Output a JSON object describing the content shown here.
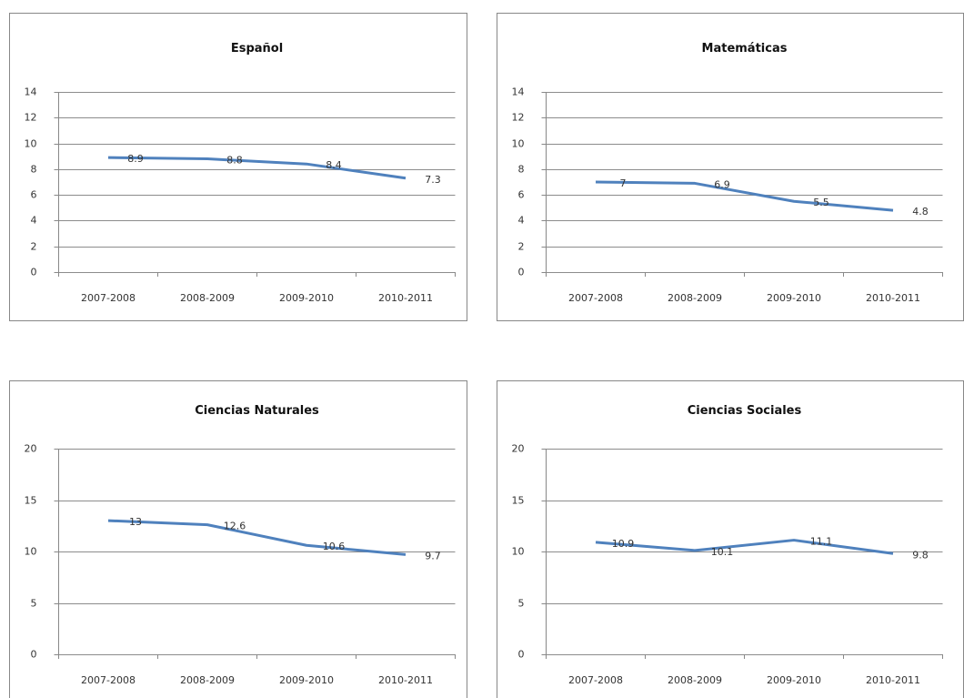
{
  "chart_data": [
    {
      "type": "line",
      "title": "Español",
      "categories": [
        "2007-2008",
        "2008-2009",
        "2009-2010",
        "2010-2011"
      ],
      "values": [
        8.9,
        8.8,
        8.4,
        7.3
      ],
      "color": "#4f81bd",
      "ylim": [
        0,
        14
      ],
      "yticks": [
        0,
        2,
        4,
        6,
        8,
        10,
        12,
        14
      ],
      "grid": true
    },
    {
      "type": "line",
      "title": "Matemáticas",
      "categories": [
        "2007-2008",
        "2008-2009",
        "2009-2010",
        "2010-2011"
      ],
      "values": [
        7,
        6.9,
        5.5,
        4.8
      ],
      "color": "#4f81bd",
      "ylim": [
        0,
        14
      ],
      "yticks": [
        0,
        2,
        4,
        6,
        8,
        10,
        12,
        14
      ],
      "grid": true
    },
    {
      "type": "line",
      "title": "Ciencias Naturales",
      "categories": [
        "2007-2008",
        "2008-2009",
        "2009-2010",
        "2010-2011"
      ],
      "values": [
        13,
        12.6,
        10.6,
        9.7
      ],
      "color": "#4f81bd",
      "ylim": [
        0,
        20
      ],
      "yticks": [
        0,
        5,
        10,
        15,
        20
      ],
      "grid": true
    },
    {
      "type": "line",
      "title": "Ciencias Sociales",
      "categories": [
        "2007-2008",
        "2008-2009",
        "2009-2010",
        "2010-2011"
      ],
      "values": [
        10.9,
        10.1,
        11.1,
        9.8
      ],
      "color": "#4f81bd",
      "ylim": [
        0,
        20
      ],
      "yticks": [
        0,
        5,
        10,
        15,
        20
      ],
      "grid": true
    }
  ]
}
